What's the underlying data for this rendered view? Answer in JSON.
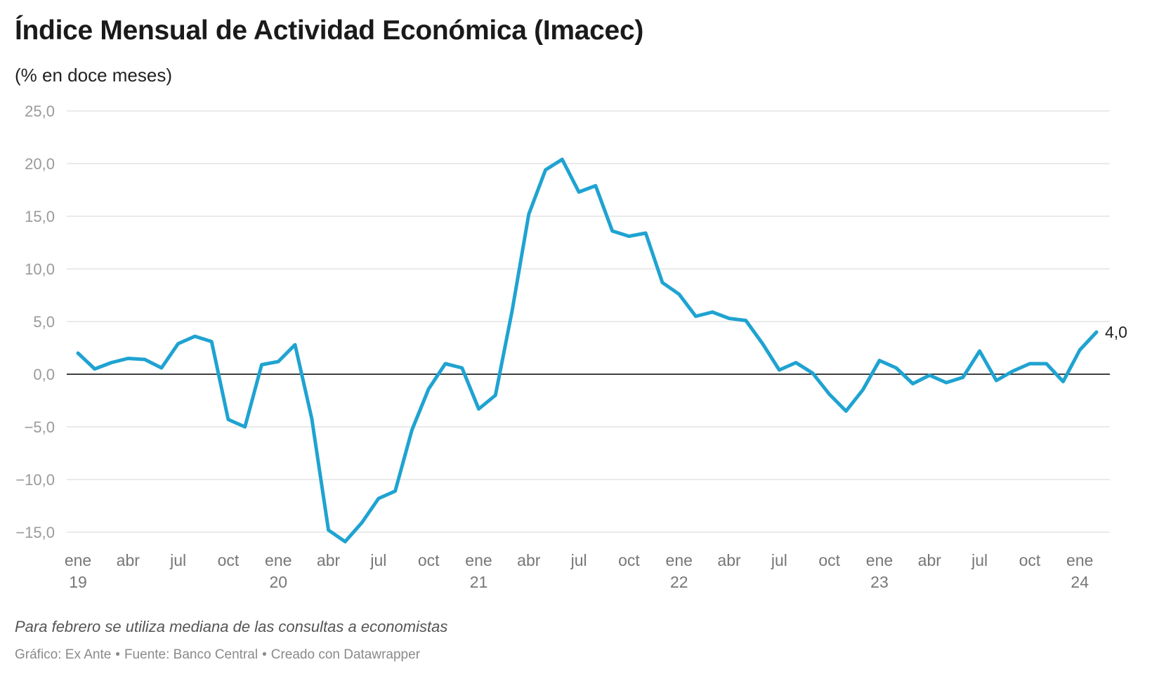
{
  "title": "Índice Mensual de Actividad Económica (Imacec)",
  "subtitle": "(% en doce meses)",
  "note": "Para febrero se utiliza mediana de las consultas a economistas",
  "credits": {
    "chart_by": "Gráfico: Ex Ante",
    "separator": "•",
    "source": "Fuente: Banco Central",
    "tool": "Creado con Datawrapper"
  },
  "colors": {
    "line": "#1fa3d1",
    "grid": "#e3e3e3",
    "zero_line": "#000000",
    "tick_label": "#9a9a9a",
    "x_label": "#777777"
  },
  "chart_data": {
    "type": "line",
    "title": "Índice Mensual de Actividad Económica (Imacec)",
    "subtitle": "(% en doce meses)",
    "xlabel": "",
    "ylabel": "",
    "ylim": [
      -15,
      25
    ],
    "y_ticks": [
      25,
      20,
      15,
      10,
      5,
      0,
      -5,
      -10,
      -15
    ],
    "y_tick_labels": [
      "25,0",
      "20,0",
      "15,0",
      "10,0",
      "5,0",
      "0,0",
      "−5,0",
      "−10,0",
      "−15,0"
    ],
    "grid": true,
    "legend": "none",
    "x_range": [
      "2019-01",
      "2024-02"
    ],
    "x_ticks": [
      {
        "month": "2019-01",
        "label": "ene",
        "year": "19"
      },
      {
        "month": "2019-04",
        "label": "abr",
        "year": ""
      },
      {
        "month": "2019-07",
        "label": "jul",
        "year": ""
      },
      {
        "month": "2019-10",
        "label": "oct",
        "year": ""
      },
      {
        "month": "2020-01",
        "label": "ene",
        "year": "20"
      },
      {
        "month": "2020-04",
        "label": "abr",
        "year": ""
      },
      {
        "month": "2020-07",
        "label": "jul",
        "year": ""
      },
      {
        "month": "2020-10",
        "label": "oct",
        "year": ""
      },
      {
        "month": "2021-01",
        "label": "ene",
        "year": "21"
      },
      {
        "month": "2021-04",
        "label": "abr",
        "year": ""
      },
      {
        "month": "2021-07",
        "label": "jul",
        "year": ""
      },
      {
        "month": "2021-10",
        "label": "oct",
        "year": ""
      },
      {
        "month": "2022-01",
        "label": "ene",
        "year": "22"
      },
      {
        "month": "2022-04",
        "label": "abr",
        "year": ""
      },
      {
        "month": "2022-07",
        "label": "jul",
        "year": ""
      },
      {
        "month": "2022-10",
        "label": "oct",
        "year": ""
      },
      {
        "month": "2023-01",
        "label": "ene",
        "year": "23"
      },
      {
        "month": "2023-04",
        "label": "abr",
        "year": ""
      },
      {
        "month": "2023-07",
        "label": "jul",
        "year": ""
      },
      {
        "month": "2023-10",
        "label": "oct",
        "year": ""
      },
      {
        "month": "2024-01",
        "label": "ene",
        "year": "24"
      }
    ],
    "series": [
      {
        "name": "",
        "x": [
          "2019-01",
          "2019-02",
          "2019-03",
          "2019-04",
          "2019-05",
          "2019-06",
          "2019-07",
          "2019-08",
          "2019-09",
          "2019-10",
          "2019-11",
          "2019-12",
          "2020-01",
          "2020-02",
          "2020-03",
          "2020-04",
          "2020-05",
          "2020-06",
          "2020-07",
          "2020-08",
          "2020-09",
          "2020-10",
          "2020-11",
          "2020-12",
          "2021-01",
          "2021-02",
          "2021-03",
          "2021-04",
          "2021-05",
          "2021-06",
          "2021-07",
          "2021-08",
          "2021-09",
          "2021-10",
          "2021-11",
          "2021-12",
          "2022-01",
          "2022-02",
          "2022-03",
          "2022-04",
          "2022-05",
          "2022-06",
          "2022-07",
          "2022-08",
          "2022-09",
          "2022-10",
          "2022-11",
          "2022-12",
          "2023-01",
          "2023-02",
          "2023-03",
          "2023-04",
          "2023-05",
          "2023-06",
          "2023-07",
          "2023-08",
          "2023-09",
          "2023-10",
          "2023-11",
          "2023-12",
          "2024-01",
          "2024-02"
        ],
        "values": [
          2.0,
          0.5,
          1.1,
          1.5,
          1.4,
          0.6,
          2.9,
          3.6,
          3.1,
          -4.3,
          -5.0,
          0.9,
          1.2,
          2.8,
          -4.2,
          -14.8,
          -15.9,
          -14.1,
          -11.8,
          -11.1,
          -5.3,
          -1.4,
          1.0,
          0.6,
          -3.3,
          -2.0,
          6.0,
          15.2,
          19.4,
          20.4,
          17.3,
          17.9,
          13.6,
          13.1,
          13.4,
          8.7,
          7.6,
          5.5,
          5.9,
          5.3,
          5.1,
          2.9,
          0.4,
          1.1,
          0.1,
          -1.9,
          -3.5,
          -1.5,
          1.3,
          0.6,
          -0.9,
          -0.1,
          -0.8,
          -0.3,
          2.2,
          -0.6,
          0.3,
          1.0,
          1.0,
          -0.7,
          2.3,
          4.0
        ]
      }
    ],
    "annotations": [
      {
        "month": "2024-02",
        "text": "4,0"
      }
    ]
  }
}
